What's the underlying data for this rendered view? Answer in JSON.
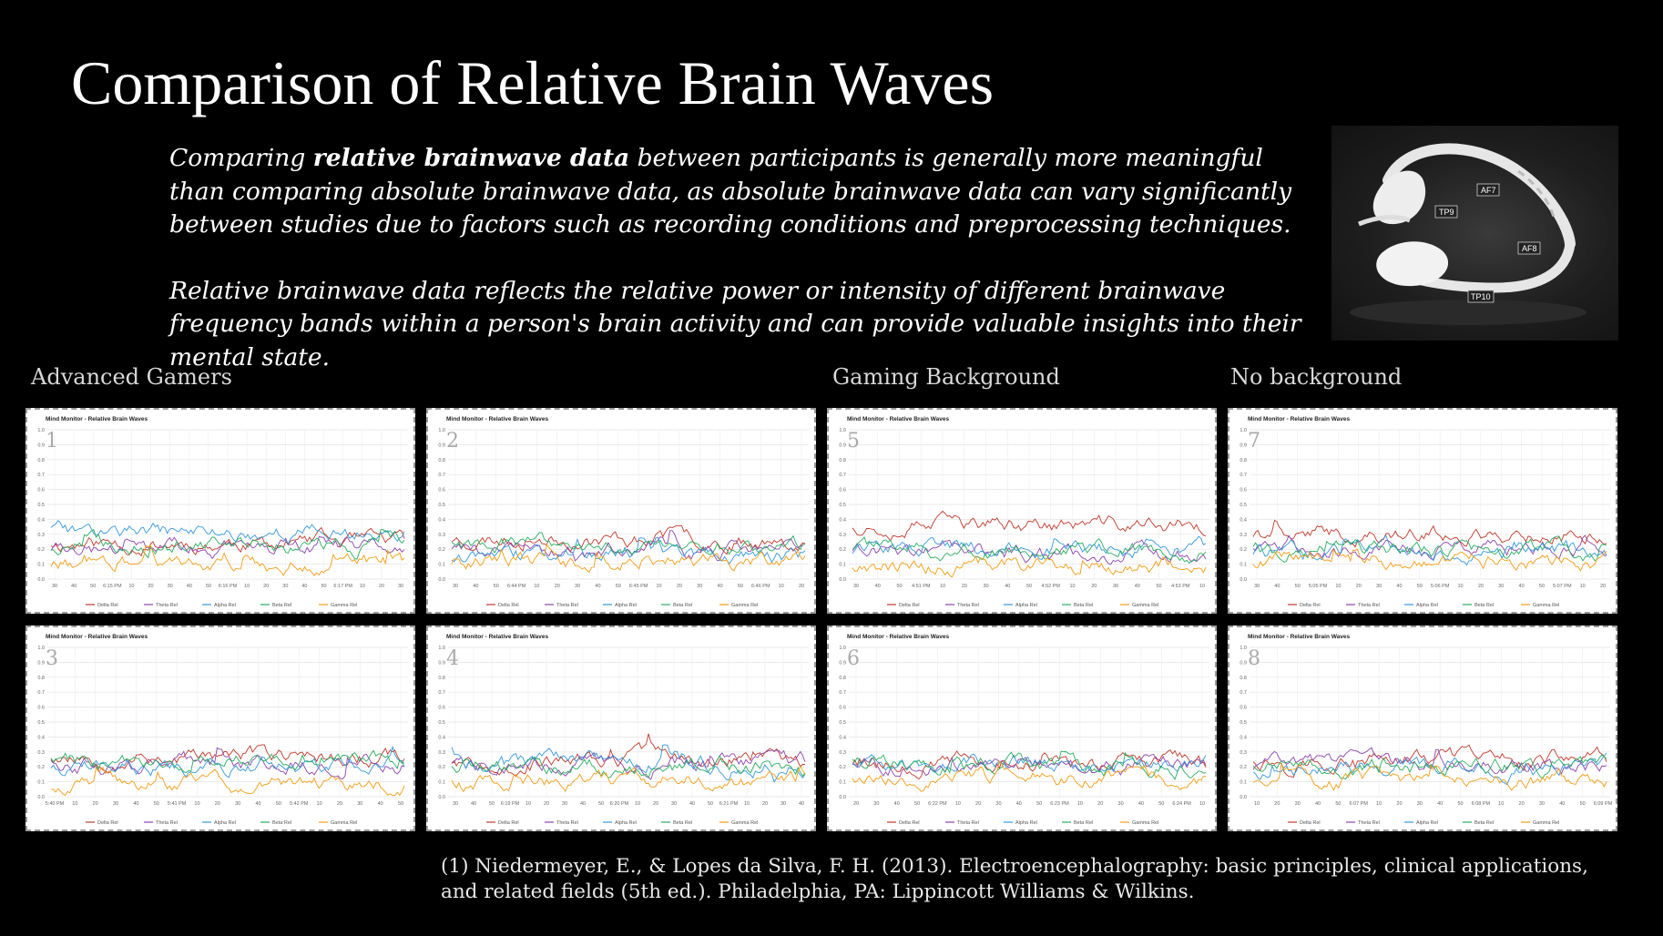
{
  "title": "Comparison of Relative Brain Waves",
  "intro": {
    "p1_pre": "Comparing ",
    "p1_bold": "relative brainwave data",
    "p1_post": " between participants is generally more meaningful than comparing absolute brainwave data, as absolute brainwave data can vary significantly between studies due to factors such as recording conditions and preprocessing techniques.",
    "p2": "Relative brainwave data reflects the relative power or intensity of different brainwave frequency bands within a person's brain activity and can provide valuable insights into their mental state."
  },
  "device_image": {
    "labels": [
      "AF7",
      "TP9",
      "AF8",
      "TP10"
    ]
  },
  "groups": [
    "Advanced Gamers",
    "Gaming Background",
    "No background"
  ],
  "reference": "(1) Niedermeyer, E., & Lopes da Silva, F. H. (2013). Electroencephalography: basic principles, clinical applications, and related fields (5th ed.). Philadelphia, PA: Lippincott Williams & Wilkins.",
  "colors": {
    "delta": "#c0392b",
    "theta": "#8e44ad",
    "alpha": "#3498db",
    "beta": "#27ae60",
    "gamma": "#f39c12"
  },
  "chart_data": [
    {
      "type": "line",
      "panel": "1",
      "group": "Advanced Gamers",
      "title": "Mind Monitor - Relative Brain Waves",
      "ylim": [
        0,
        1.0
      ],
      "yticks": [
        "1.0",
        "0.9",
        "0.8",
        "0.7",
        "0.6",
        "0.5",
        "0.4",
        "0.3",
        "0.2",
        "0.1",
        "0.0"
      ],
      "xticks": [
        "30",
        "40",
        "50",
        "6:15 PM",
        "10",
        "20",
        "30",
        "40",
        "50",
        "6:16 PM",
        "10",
        "20",
        "30",
        "40",
        "50",
        "6:17 PM",
        "10",
        "20",
        "30"
      ],
      "legend": [
        "Delta Rel",
        "Theta Rel",
        "Alpha Rel",
        "Beta Rel",
        "Gamma Rel"
      ],
      "series_means": [
        0.24,
        0.2,
        0.31,
        0.22,
        0.1
      ],
      "seed": 11
    },
    {
      "type": "line",
      "panel": "2",
      "group": "Advanced Gamers",
      "title": "Mind Monitor - Relative Brain Waves",
      "ylim": [
        0,
        1.0
      ],
      "yticks": [
        "1.0",
        "0.9",
        "0.8",
        "0.7",
        "0.6",
        "0.5",
        "0.4",
        "0.3",
        "0.2",
        "0.1",
        "0.0"
      ],
      "xticks": [
        "30",
        "40",
        "50",
        "6:44 PM",
        "10",
        "20",
        "30",
        "40",
        "50",
        "6:45 PM",
        "10",
        "20",
        "30",
        "40",
        "50",
        "6:46 PM",
        "10",
        "20"
      ],
      "legend": [
        "Delta Rel",
        "Theta Rel",
        "Alpha Rel",
        "Beta Rel",
        "Gamma Rel"
      ],
      "series_means": [
        0.27,
        0.19,
        0.16,
        0.22,
        0.12
      ],
      "seed": 23
    },
    {
      "type": "line",
      "panel": "5",
      "group": "Gaming Background",
      "title": "Mind Monitor - Relative Brain Waves",
      "ylim": [
        0,
        1.0
      ],
      "yticks": [
        "1.0",
        "0.9",
        "0.8",
        "0.7",
        "0.6",
        "0.5",
        "0.4",
        "0.3",
        "0.2",
        "0.1",
        "0.0"
      ],
      "xticks": [
        "30",
        "40",
        "50",
        "4:51 PM",
        "10",
        "20",
        "30",
        "40",
        "50",
        "4:52 PM",
        "10",
        "20",
        "30",
        "40",
        "50",
        "4:53 PM",
        "10"
      ],
      "legend": [
        "Delta Rel",
        "Theta Rel",
        "Alpha Rel",
        "Beta Rel",
        "Gamma Rel"
      ],
      "series_means": [
        0.36,
        0.17,
        0.2,
        0.19,
        0.09
      ],
      "seed": 37
    },
    {
      "type": "line",
      "panel": "7",
      "group": "No background",
      "title": "Mind Monitor - Relative Brain Waves",
      "ylim": [
        0,
        1.0
      ],
      "yticks": [
        "1.0",
        "0.9",
        "0.8",
        "0.7",
        "0.6",
        "0.5",
        "0.4",
        "0.3",
        "0.2",
        "0.1",
        "0.0"
      ],
      "xticks": [
        "30",
        "40",
        "50",
        "5:05 PM",
        "10",
        "20",
        "30",
        "40",
        "50",
        "5:06 PM",
        "10",
        "20",
        "30",
        "40",
        "50",
        "5:07 PM",
        "10",
        "20"
      ],
      "legend": [
        "Delta Rel",
        "Theta Rel",
        "Alpha Rel",
        "Beta Rel",
        "Gamma Rel"
      ],
      "series_means": [
        0.3,
        0.2,
        0.18,
        0.19,
        0.12
      ],
      "seed": 41
    },
    {
      "type": "line",
      "panel": "3",
      "group": "Advanced Gamers",
      "title": "Mind Monitor - Relative Brain Waves",
      "ylim": [
        0,
        1.0
      ],
      "yticks": [
        "1.0",
        "0.9",
        "0.8",
        "0.7",
        "0.6",
        "0.5",
        "0.4",
        "0.3",
        "0.2",
        "0.1",
        "0.0"
      ],
      "xticks": [
        "5:40 PM",
        "10",
        "20",
        "30",
        "40",
        "50",
        "5:41 PM",
        "10",
        "20",
        "30",
        "40",
        "50",
        "5:42 PM",
        "10",
        "20",
        "30",
        "40",
        "50"
      ],
      "legend": [
        "Delta Rel",
        "Theta Rel",
        "Alpha Rel",
        "Beta Rel",
        "Gamma Rel"
      ],
      "series_means": [
        0.27,
        0.22,
        0.2,
        0.24,
        0.08
      ],
      "seed": 53
    },
    {
      "type": "line",
      "panel": "4",
      "group": "Advanced Gamers",
      "title": "Mind Monitor - Relative Brain Waves",
      "ylim": [
        0,
        1.0
      ],
      "yticks": [
        "1.0",
        "0.9",
        "0.8",
        "0.7",
        "0.6",
        "0.5",
        "0.4",
        "0.3",
        "0.2",
        "0.1",
        "0.0"
      ],
      "xticks": [
        "30",
        "40",
        "50",
        "6:19 PM",
        "10",
        "20",
        "30",
        "40",
        "50",
        "6:20 PM",
        "10",
        "20",
        "30",
        "40",
        "50",
        "6:21 PM",
        "10",
        "20",
        "30",
        "40"
      ],
      "legend": [
        "Delta Rel",
        "Theta Rel",
        "Alpha Rel",
        "Beta Rel",
        "Gamma Rel"
      ],
      "series_means": [
        0.24,
        0.22,
        0.22,
        0.21,
        0.11
      ],
      "seed": 67
    },
    {
      "type": "line",
      "panel": "6",
      "group": "Gaming Background",
      "title": "Mind Monitor - Relative Brain Waves",
      "ylim": [
        0,
        1.0
      ],
      "yticks": [
        "1.0",
        "0.9",
        "0.8",
        "0.7",
        "0.6",
        "0.5",
        "0.4",
        "0.3",
        "0.2",
        "0.1",
        "0.0"
      ],
      "xticks": [
        "20",
        "30",
        "40",
        "50",
        "6:22 PM",
        "10",
        "20",
        "30",
        "40",
        "50",
        "6:23 PM",
        "10",
        "20",
        "30",
        "40",
        "50",
        "6:24 PM",
        "10"
      ],
      "legend": [
        "Delta Rel",
        "Theta Rel",
        "Alpha Rel",
        "Beta Rel",
        "Gamma Rel"
      ],
      "series_means": [
        0.23,
        0.21,
        0.22,
        0.2,
        0.12
      ],
      "seed": 79
    },
    {
      "type": "line",
      "panel": "8",
      "group": "No background",
      "title": "Mind Monitor - Relative Brain Waves",
      "ylim": [
        0,
        1.0
      ],
      "yticks": [
        "1.0",
        "0.9",
        "0.8",
        "0.7",
        "0.6",
        "0.5",
        "0.4",
        "0.3",
        "0.2",
        "0.1",
        "0.0"
      ],
      "xticks": [
        "10",
        "20",
        "30",
        "40",
        "50",
        "6:07 PM",
        "10",
        "20",
        "30",
        "40",
        "50",
        "6:08 PM",
        "10",
        "20",
        "30",
        "40",
        "50",
        "6:09 PM"
      ],
      "legend": [
        "Delta Rel",
        "Theta Rel",
        "Alpha Rel",
        "Beta Rel",
        "Gamma Rel"
      ],
      "series_means": [
        0.25,
        0.21,
        0.19,
        0.2,
        0.11
      ],
      "seed": 97
    }
  ]
}
